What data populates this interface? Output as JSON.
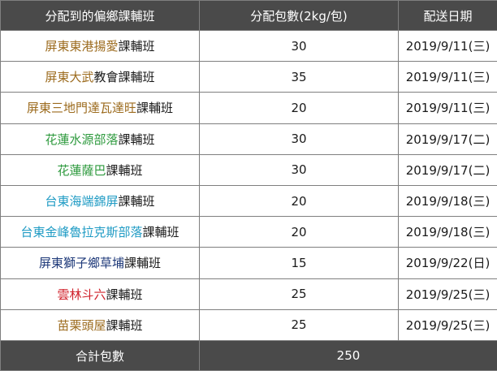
{
  "table": {
    "headers": [
      "分配到的偏鄉課輔班",
      "分配包數(2kg/包)",
      "配送日期"
    ],
    "rows": [
      {
        "name": "屏東東港揚愛",
        "suffix": "課輔班",
        "color": "#9c6b1e",
        "packs": "30",
        "date": "2019/9/11(三)"
      },
      {
        "name": "屏東大武",
        "suffix": "教會課輔班",
        "color": "#9c6b1e",
        "packs": "35",
        "date": "2019/9/11(三)"
      },
      {
        "name": "屏東三地門達瓦達旺",
        "suffix": "課輔班",
        "color": "#9c6b1e",
        "packs": "20",
        "date": "2019/9/11(三)"
      },
      {
        "name": "花蓮水源部落",
        "suffix": "課輔班",
        "color": "#2e9a3e",
        "packs": "30",
        "date": "2019/9/17(二)"
      },
      {
        "name": "花蓮薩巴",
        "suffix": "課輔班",
        "color": "#2e9a3e",
        "packs": "30",
        "date": "2019/9/17(二)"
      },
      {
        "name": "台東海端錦屏",
        "suffix": "課輔班",
        "color": "#1f9bc4",
        "packs": "20",
        "date": "2019/9/18(三)"
      },
      {
        "name": "台東金峰魯拉克斯部落",
        "suffix": "課輔班",
        "color": "#1f9bc4",
        "packs": "20",
        "date": "2019/9/18(三)"
      },
      {
        "name": "屏東獅子鄉草埔",
        "suffix": "課輔班",
        "color": "#1f3a7a",
        "packs": "15",
        "date": "2019/9/22(日)"
      },
      {
        "name": "雲林斗六",
        "suffix": "課輔班",
        "color": "#d0202a",
        "packs": "25",
        "date": "2019/9/25(三)"
      },
      {
        "name": "苗栗頭屋",
        "suffix": "課輔班",
        "color": "#9c6b1e",
        "packs": "25",
        "date": "2019/9/25(三)"
      }
    ],
    "footer": {
      "label": "合計包數",
      "total": "250"
    }
  },
  "colors": {
    "header_bg": "#4a4a4a",
    "header_text": "#ffffff",
    "border": "#7f7f7f"
  }
}
